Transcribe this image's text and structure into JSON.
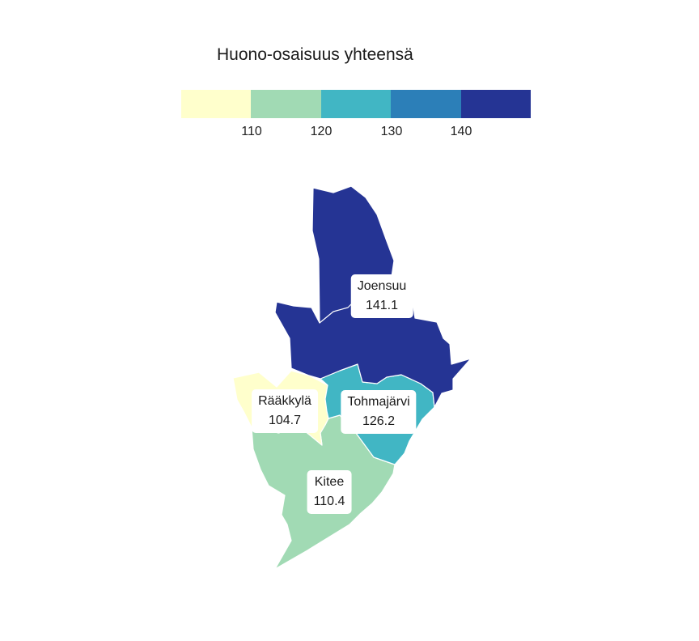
{
  "legend": {
    "title": "Huono-osaisuus yhteensä",
    "bins": [
      {
        "color": "#ffffcc"
      },
      {
        "color": "#a1dab4"
      },
      {
        "color": "#41b6c4"
      },
      {
        "color": "#2c7fb8"
      },
      {
        "color": "#253494"
      }
    ],
    "ticks": [
      "110",
      "120",
      "130",
      "140"
    ]
  },
  "chart_data": {
    "type": "choropleth",
    "title": "Huono-osaisuus yhteensä",
    "breaks": [
      110,
      120,
      130,
      140
    ],
    "regions": [
      {
        "name": "Joensuu",
        "value": "141.1",
        "color": "#253494"
      },
      {
        "name": "Rääkkylä",
        "value": "104.7",
        "color": "#ffffcc"
      },
      {
        "name": "Tohmajärvi",
        "value": "126.2",
        "color": "#41b6c4"
      },
      {
        "name": "Kitee",
        "value": "110.4",
        "color": "#a1dab4"
      }
    ]
  }
}
